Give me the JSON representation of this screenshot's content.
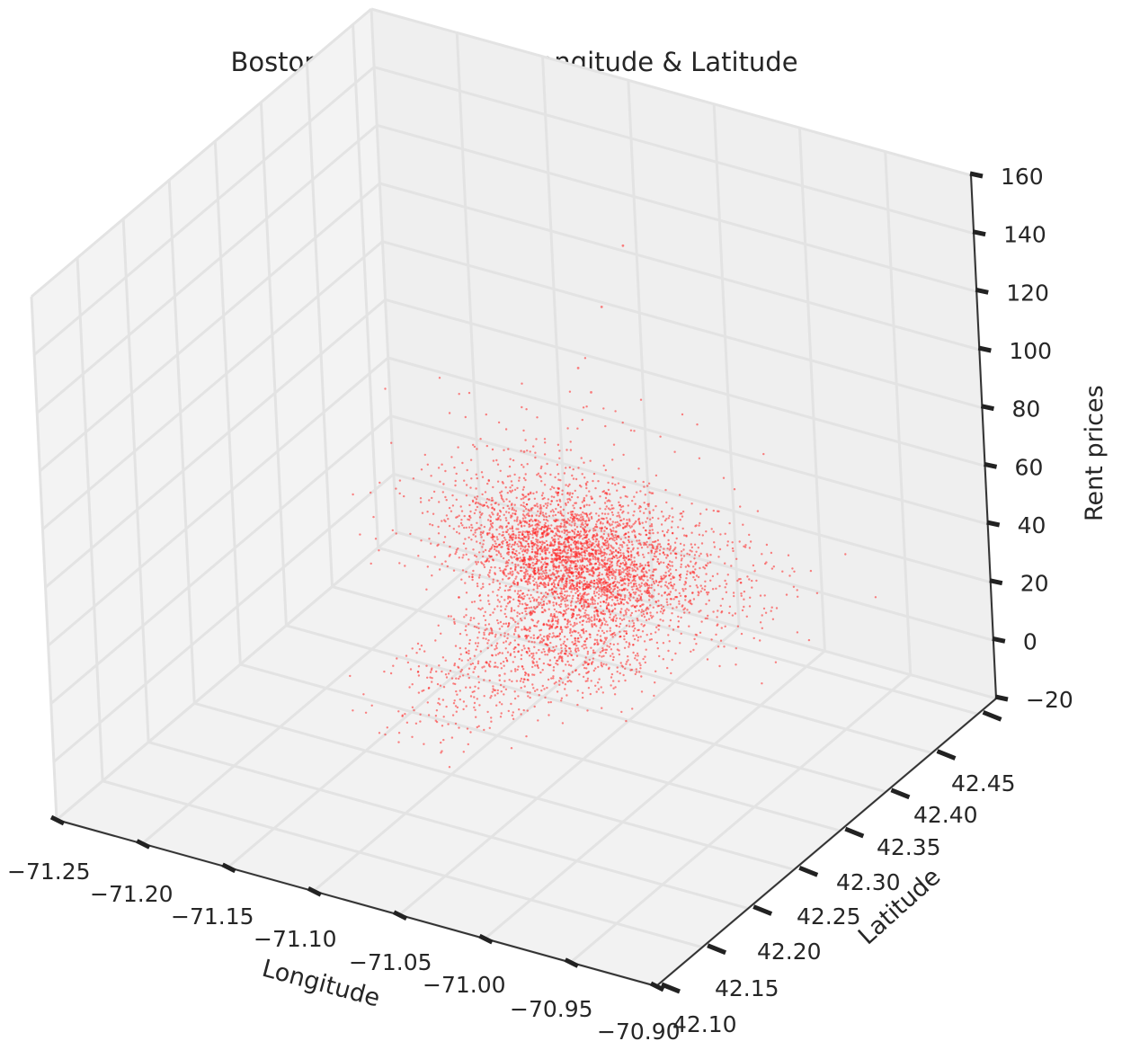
{
  "chart_data": {
    "type": "scatter",
    "title": "Boston Rent Prices By Longitude & Latitude",
    "xlabel": "Longitude",
    "ylabel": "Latitude",
    "zlabel": "Rent prices",
    "xlim": [
      -71.25,
      -70.9
    ],
    "ylim": [
      42.1,
      42.47
    ],
    "zlim": [
      -20,
      160
    ],
    "x_ticks": [
      "−71.25",
      "−71.20",
      "−71.15",
      "−71.10",
      "−71.05",
      "−71.00",
      "−70.95",
      "−70.90"
    ],
    "y_ticks": [
      "42.10",
      "42.15",
      "42.20",
      "42.25",
      "42.30",
      "42.35",
      "42.40",
      "42.45"
    ],
    "z_ticks": [
      "−20",
      "0",
      "20",
      "40",
      "60",
      "80",
      "100",
      "120",
      "140",
      "160"
    ],
    "marker_color": "#ff2020",
    "grid": true,
    "pane_color": "#efefef",
    "sample_points": [
      {
        "lon": -71.07,
        "lat": 42.35,
        "rent": 28
      },
      {
        "lon": -71.06,
        "lat": 42.36,
        "rent": 35
      },
      {
        "lon": -71.09,
        "lat": 42.34,
        "rent": 25
      },
      {
        "lon": -71.05,
        "lat": 42.33,
        "rent": 22
      },
      {
        "lon": -71.1,
        "lat": 42.37,
        "rent": 30
      },
      {
        "lon": -71.12,
        "lat": 42.35,
        "rent": 20
      },
      {
        "lon": -71.03,
        "lat": 42.38,
        "rent": 18
      },
      {
        "lon": -71.06,
        "lat": 42.3,
        "rent": 15
      },
      {
        "lon": -71.08,
        "lat": 42.27,
        "rent": 12
      },
      {
        "lon": -71.13,
        "lat": 42.4,
        "rent": 26
      },
      {
        "lon": -71.11,
        "lat": 42.36,
        "rent": 60
      },
      {
        "lon": -71.07,
        "lat": 42.35,
        "rent": 98
      },
      {
        "lon": -71.04,
        "lat": 42.35,
        "rent": 145
      },
      {
        "lon": -71.06,
        "lat": 42.36,
        "rent": 118
      },
      {
        "lon": -71.08,
        "lat": 42.38,
        "rent": 80
      }
    ]
  }
}
